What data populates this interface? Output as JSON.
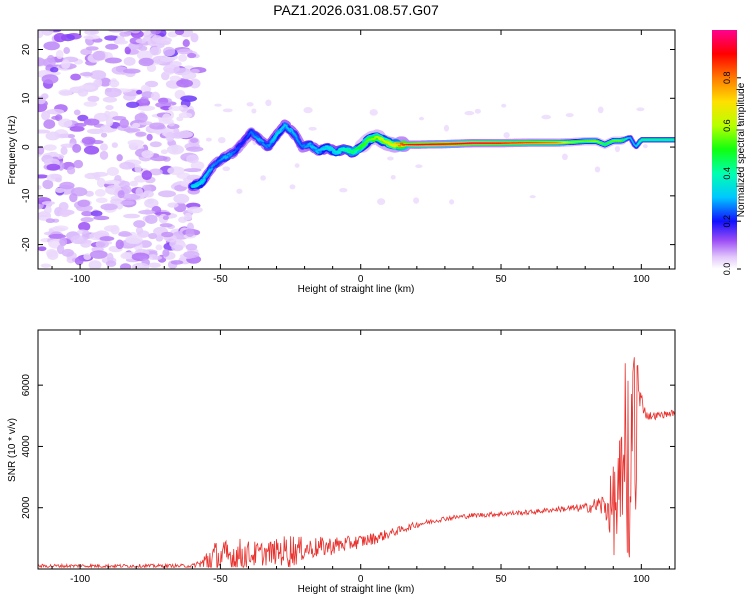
{
  "title": "PAZ1.2026.031.08.57.G07",
  "colors": {
    "snr_line": "#e8322e",
    "axis": "#000000",
    "background": "#ffffff"
  },
  "chart_data": [
    {
      "type": "heatmap",
      "xlabel": "Height of straight line (km)",
      "ylabel": "Frequency (Hz)",
      "xlim": [
        -115,
        112
      ],
      "ylim": [
        -25,
        24
      ],
      "xticks": [
        -100,
        -50,
        0,
        50,
        100
      ],
      "xtick_labels": [
        "-100",
        "-50",
        "0",
        "50",
        "100"
      ],
      "yticks": [
        -20,
        -10,
        0,
        10,
        20
      ],
      "ytick_labels": [
        "-20",
        "-10",
        "0",
        "10",
        "20"
      ],
      "noise_region_x": [
        -115,
        -60
      ],
      "ridge": {
        "x": [
          -60,
          -57,
          -54,
          -51,
          -48,
          -45,
          -42,
          -39,
          -36,
          -33,
          -30,
          -27,
          -24,
          -21,
          -18,
          -15,
          -12,
          -9,
          -6,
          -3,
          0,
          3,
          6,
          9,
          12,
          15,
          20,
          30,
          40,
          50,
          60,
          70,
          75,
          80,
          84,
          87,
          90,
          93,
          96,
          98,
          100,
          103,
          106,
          109,
          112
        ],
        "y": [
          -8,
          -7.5,
          -5,
          -3,
          -2,
          -1,
          1,
          3,
          1.5,
          0,
          2.5,
          4.5,
          3,
          0,
          0.5,
          -1,
          0,
          -1,
          -0.5,
          -1,
          0,
          1.5,
          2,
          1,
          0.5,
          0.5,
          0.5,
          0.6,
          0.8,
          0.8,
          0.9,
          0.9,
          1,
          1.2,
          1.2,
          0.5,
          1.3,
          1.3,
          2,
          0,
          1.5,
          1.5,
          1.5,
          1.5,
          1.5
        ],
        "amplitude": [
          0.35,
          0.35,
          0.3,
          0.25,
          0.3,
          0.25,
          0.2,
          0.25,
          0.3,
          0.25,
          0.35,
          0.3,
          0.3,
          0.25,
          0.3,
          0.3,
          0.35,
          0.35,
          0.4,
          0.45,
          0.5,
          0.55,
          0.6,
          0.65,
          0.7,
          0.85,
          0.95,
          0.95,
          0.95,
          0.9,
          0.85,
          0.8,
          0.6,
          0.55,
          0.6,
          0.5,
          0.55,
          0.55,
          0.3,
          0.3,
          0.45,
          0.45,
          0.45,
          0.45,
          0.45
        ]
      },
      "colorbar": {
        "label": "Normalized spectral amplitude",
        "range": [
          0,
          1
        ],
        "ticks": [
          0.0,
          0.2,
          0.4,
          0.6,
          0.8
        ],
        "tick_labels": [
          "0.0",
          "0.2",
          "0.4",
          "0.6",
          "0.8"
        ],
        "stops": [
          {
            "v": 0.0,
            "color": "#ffffff"
          },
          {
            "v": 0.05,
            "color": "#e2c8fb"
          },
          {
            "v": 0.12,
            "color": "#9b4df5"
          },
          {
            "v": 0.2,
            "color": "#1010ff"
          },
          {
            "v": 0.3,
            "color": "#00c8ff"
          },
          {
            "v": 0.4,
            "color": "#00ffb0"
          },
          {
            "v": 0.5,
            "color": "#10ff10"
          },
          {
            "v": 0.6,
            "color": "#b8ff00"
          },
          {
            "v": 0.7,
            "color": "#ffe000"
          },
          {
            "v": 0.8,
            "color": "#ff7a00"
          },
          {
            "v": 0.9,
            "color": "#ff0000"
          },
          {
            "v": 1.0,
            "color": "#ff0090"
          }
        ]
      }
    },
    {
      "type": "line",
      "xlabel": "Height of straight line (km)",
      "ylabel": "SNR (10 * v/v)",
      "xlim": [
        -115,
        112
      ],
      "ylim": [
        0,
        7800
      ],
      "xticks": [
        -100,
        -50,
        0,
        50,
        100
      ],
      "xtick_labels": [
        "-100",
        "-50",
        "0",
        "50",
        "100"
      ],
      "yticks": [
        2000,
        4000,
        6000
      ],
      "ytick_labels": [
        "2000",
        "4000",
        "6000"
      ],
      "envelope": {
        "x": [
          -115,
          -60,
          -56,
          -54,
          -50,
          -45,
          -40,
          -35,
          -30,
          -25,
          -20,
          -15,
          -10,
          -5,
          0,
          5,
          10,
          15,
          20,
          25,
          30,
          40,
          50,
          60,
          70,
          80,
          85,
          88,
          90,
          92,
          94,
          96,
          98,
          99,
          100,
          102,
          105,
          112
        ],
        "base": [
          100,
          100,
          180,
          300,
          380,
          420,
          480,
          500,
          560,
          600,
          650,
          700,
          760,
          820,
          900,
          1000,
          1150,
          1300,
          1450,
          1550,
          1650,
          1750,
          1800,
          1850,
          1950,
          2000,
          2100,
          2000,
          2000,
          2200,
          2400,
          2100,
          2500,
          5500,
          5500,
          5000,
          5000,
          5100
        ],
        "amp": [
          60,
          60,
          300,
          700,
          500,
          650,
          450,
          400,
          420,
          600,
          350,
          350,
          300,
          250,
          220,
          200,
          150,
          120,
          100,
          80,
          80,
          80,
          80,
          80,
          80,
          150,
          300,
          600,
          1500,
          2200,
          2200,
          2000,
          2400,
          800,
          300,
          150,
          120,
          100
        ]
      },
      "series": [
        {
          "name": "SNR",
          "color": "#e8322e"
        }
      ]
    }
  ]
}
